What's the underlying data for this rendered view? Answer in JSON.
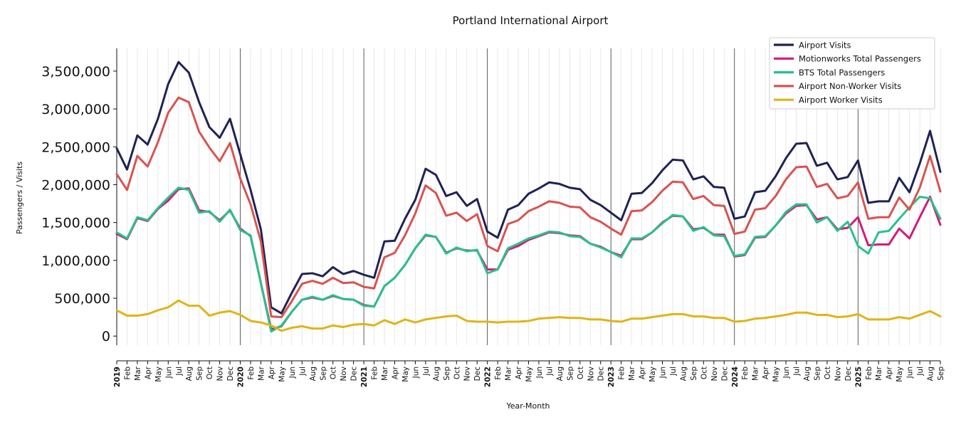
{
  "chart_data": {
    "type": "line",
    "title": "Portland International Airport",
    "xlabel": "Year-Month",
    "ylabel": "Passengers / Visits",
    "ylim": [
      -120000,
      3800000
    ],
    "yticks": [
      0,
      500000,
      1000000,
      1500000,
      2000000,
      2500000,
      3000000,
      3500000
    ],
    "ytick_labels": [
      "0",
      "500,000",
      "1,000,000",
      "1,500,000",
      "2,000,000",
      "2,500,000",
      "3,000,000",
      "3,500,000"
    ],
    "x": [
      "2019",
      "Feb",
      "Mar",
      "Apr",
      "May",
      "Jun",
      "Jul",
      "Aug",
      "Sep",
      "Oct",
      "Nov",
      "Dec",
      "2020",
      "Feb",
      "Mar",
      "Apr",
      "May",
      "Jun",
      "Jul",
      "Aug",
      "Sep",
      "Oct",
      "Nov",
      "Dec",
      "2021",
      "Feb",
      "Mar",
      "Apr",
      "May",
      "Jun",
      "Jul",
      "Aug",
      "Sep",
      "Oct",
      "Nov",
      "Dec",
      "2022",
      "Feb",
      "Mar",
      "Apr",
      "May",
      "Jun",
      "Jul",
      "Aug",
      "Sep",
      "Oct",
      "Nov",
      "Dec",
      "2023",
      "Feb",
      "Mar",
      "Apr",
      "May",
      "Jun",
      "Jul",
      "Aug",
      "Sep",
      "Oct",
      "Nov",
      "Dec",
      "2024",
      "Feb",
      "Mar",
      "Apr",
      "May",
      "Jun",
      "Jul",
      "Aug",
      "Sep",
      "Oct",
      "Nov",
      "Dec",
      "2025",
      "Feb",
      "Mar",
      "Apr",
      "May",
      "Jun",
      "Jul",
      "Aug",
      "Sep"
    ],
    "year_labels": [
      "2019",
      "2020",
      "2021",
      "2022",
      "2023",
      "2024",
      "2025"
    ],
    "legend_position": "top-right",
    "grid": "vertical-monthly",
    "series": [
      {
        "name": "Airport Visits",
        "color": "#1f2255",
        "values": [
          2480000,
          2200000,
          2650000,
          2530000,
          2870000,
          3330000,
          3620000,
          3480000,
          3090000,
          2760000,
          2620000,
          2870000,
          2400000,
          1930000,
          1410000,
          380000,
          300000,
          570000,
          820000,
          830000,
          790000,
          910000,
          820000,
          860000,
          810000,
          770000,
          1250000,
          1260000,
          1550000,
          1800000,
          2210000,
          2130000,
          1850000,
          1900000,
          1720000,
          1810000,
          1380000,
          1300000,
          1670000,
          1730000,
          1880000,
          1950000,
          2030000,
          2010000,
          1960000,
          1940000,
          1800000,
          1730000,
          1630000,
          1530000,
          1880000,
          1890000,
          2020000,
          2190000,
          2330000,
          2320000,
          2070000,
          2110000,
          1970000,
          1960000,
          1550000,
          1580000,
          1900000,
          1920000,
          2110000,
          2350000,
          2540000,
          2550000,
          2250000,
          2290000,
          2070000,
          2100000,
          2320000,
          1760000,
          1780000,
          1780000,
          2090000,
          1900000,
          2280000,
          2710000,
          2170000
        ]
      },
      {
        "name": "Motionworks Total Passengers",
        "color": "#d4197a",
        "values": [
          1350000,
          1280000,
          1560000,
          1520000,
          1680000,
          1790000,
          1940000,
          1950000,
          1660000,
          1640000,
          1530000,
          1660000,
          1420000,
          1320000,
          700000,
          90000,
          130000,
          320000,
          480000,
          510000,
          480000,
          530000,
          490000,
          480000,
          410000,
          390000,
          660000,
          770000,
          940000,
          1160000,
          1330000,
          1310000,
          1100000,
          1160000,
          1130000,
          1130000,
          880000,
          880000,
          1140000,
          1190000,
          1270000,
          1320000,
          1370000,
          1360000,
          1330000,
          1320000,
          1220000,
          1180000,
          1110000,
          1060000,
          1280000,
          1280000,
          1370000,
          1500000,
          1590000,
          1580000,
          1410000,
          1430000,
          1340000,
          1340000,
          1050000,
          1070000,
          1300000,
          1310000,
          1460000,
          1620000,
          1720000,
          1730000,
          1540000,
          1570000,
          1410000,
          1430000,
          1570000,
          1200000,
          1210000,
          1210000,
          1420000,
          1290000,
          1570000,
          1840000,
          1470000
        ]
      },
      {
        "name": "BTS Total Passengers",
        "color": "#26c28c",
        "values": [
          1370000,
          1290000,
          1570000,
          1530000,
          1690000,
          1830000,
          1960000,
          1930000,
          1630000,
          1650000,
          1510000,
          1670000,
          1400000,
          1330000,
          700000,
          60000,
          140000,
          320000,
          480000,
          520000,
          480000,
          540000,
          490000,
          480000,
          400000,
          390000,
          660000,
          770000,
          940000,
          1160000,
          1340000,
          1310000,
          1090000,
          1170000,
          1120000,
          1140000,
          830000,
          880000,
          1160000,
          1220000,
          1290000,
          1330000,
          1380000,
          1370000,
          1320000,
          1310000,
          1220000,
          1170000,
          1110000,
          1040000,
          1290000,
          1290000,
          1370000,
          1490000,
          1600000,
          1580000,
          1390000,
          1440000,
          1330000,
          1320000,
          1060000,
          1080000,
          1310000,
          1320000,
          1460000,
          1640000,
          1740000,
          1740000,
          1500000,
          1570000,
          1390000,
          1510000,
          1190000,
          1090000,
          1370000,
          1390000,
          1550000,
          1700000,
          1840000,
          1820000,
          1550000
        ]
      },
      {
        "name": "Airport Non-Worker Visits",
        "color": "#d9534f",
        "values": [
          2140000,
          1930000,
          2380000,
          2240000,
          2560000,
          2950000,
          3150000,
          3090000,
          2700000,
          2490000,
          2310000,
          2550000,
          2080000,
          1740000,
          1250000,
          260000,
          250000,
          460000,
          690000,
          730000,
          690000,
          770000,
          700000,
          710000,
          650000,
          630000,
          1040000,
          1100000,
          1330000,
          1620000,
          1990000,
          1890000,
          1590000,
          1630000,
          1520000,
          1610000,
          1190000,
          1120000,
          1480000,
          1530000,
          1650000,
          1710000,
          1780000,
          1760000,
          1710000,
          1700000,
          1570000,
          1510000,
          1420000,
          1340000,
          1650000,
          1660000,
          1770000,
          1920000,
          2040000,
          2030000,
          1810000,
          1850000,
          1730000,
          1720000,
          1350000,
          1380000,
          1670000,
          1690000,
          1850000,
          2070000,
          2230000,
          2240000,
          1970000,
          2010000,
          1820000,
          1850000,
          2030000,
          1550000,
          1570000,
          1570000,
          1830000,
          1670000,
          1960000,
          2380000,
          1910000
        ]
      },
      {
        "name": "Airport Worker Visits",
        "color": "#e0b415",
        "values": [
          340000,
          270000,
          270000,
          290000,
          340000,
          380000,
          470000,
          400000,
          400000,
          270000,
          310000,
          330000,
          280000,
          200000,
          180000,
          140000,
          70000,
          110000,
          130000,
          100000,
          100000,
          140000,
          120000,
          150000,
          160000,
          140000,
          210000,
          160000,
          220000,
          180000,
          220000,
          240000,
          260000,
          270000,
          200000,
          190000,
          190000,
          180000,
          190000,
          190000,
          200000,
          230000,
          240000,
          250000,
          240000,
          240000,
          220000,
          220000,
          200000,
          190000,
          230000,
          230000,
          250000,
          270000,
          290000,
          290000,
          260000,
          260000,
          240000,
          240000,
          190000,
          200000,
          230000,
          240000,
          260000,
          280000,
          310000,
          310000,
          280000,
          280000,
          250000,
          260000,
          290000,
          220000,
          220000,
          220000,
          250000,
          230000,
          280000,
          330000,
          260000
        ]
      }
    ]
  }
}
